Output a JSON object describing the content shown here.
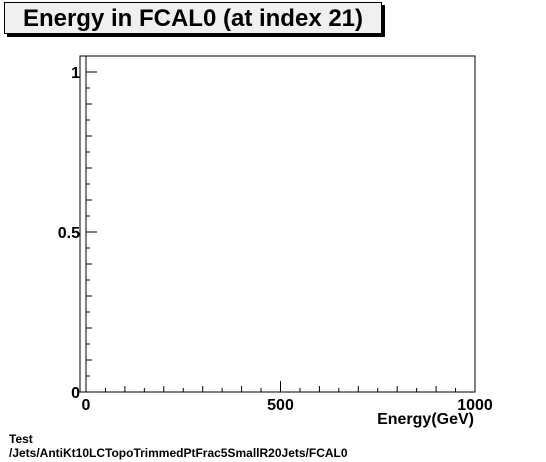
{
  "chart_data": {
    "type": "bar",
    "title": "Energy in FCAL0 (at index 21)",
    "xlabel": "Energy(GeV)",
    "ylabel": "",
    "xlim": [
      0,
      1000
    ],
    "ylim": [
      0,
      1.05
    ],
    "x_tick_labels": [
      "0",
      "500",
      "1000"
    ],
    "x_tick_values": [
      0,
      500,
      1000
    ],
    "y_tick_labels": [
      "0",
      "0.5",
      "1"
    ],
    "y_tick_values": [
      0,
      0.5,
      1
    ],
    "values": [],
    "grid": false
  },
  "footer": {
    "line1": "Test",
    "line2": "/Jets/AntiKt10LCTopoTrimmedPtFrac5SmallR20Jets/FCAL0"
  }
}
